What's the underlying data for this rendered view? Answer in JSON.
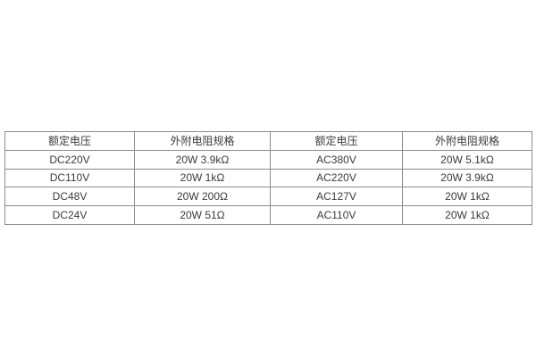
{
  "table": {
    "headers": [
      "额定电压",
      "外附电阻规格",
      "额定电压",
      "外附电阻规格"
    ],
    "rows": [
      {
        "cells": [
          "DC220V",
          "20W 3.9kΩ",
          "AC380V",
          "20W 5.1kΩ"
        ]
      },
      {
        "cells": [
          "DC110V",
          "20W 1kΩ",
          "AC220V",
          "20W 3.9kΩ"
        ]
      },
      {
        "cells": [
          "DC48V",
          "20W 200Ω",
          "AC127V",
          "20W 1kΩ"
        ]
      },
      {
        "cells": [
          "DC24V",
          "20W 51Ω",
          "AC110V",
          "20W 1kΩ"
        ]
      }
    ],
    "colors": {
      "border": "#8c8c8c",
      "text": "#3a3a3a",
      "background": "#ffffff"
    }
  }
}
